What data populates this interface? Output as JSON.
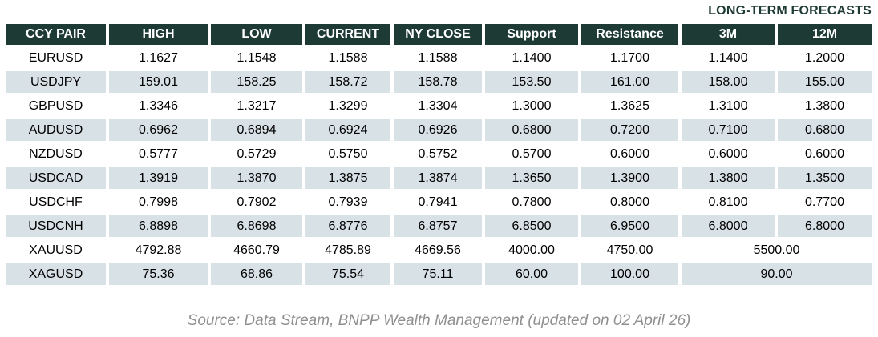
{
  "title": "LONG-TERM FORECASTS",
  "source": "Source: Data Stream, BNPP Wealth Management (updated on 02 April 26)",
  "colors": {
    "header_bg": "#1e3a34",
    "header_text": "#ffffff",
    "row_alt_bg": "#d8e1e6",
    "title_text": "#1e3a34",
    "source_text": "#8f8f8f",
    "cell_text": "#000000"
  },
  "table": {
    "columns": [
      "CCY PAIR",
      "HIGH",
      "LOW",
      "CURRENT",
      "NY CLOSE",
      "Support",
      "Resistance",
      "3M",
      "12M"
    ],
    "rows": [
      {
        "pair": "EURUSD",
        "cells": [
          "1.1627",
          "1.1548",
          "1.1588",
          "1.1588",
          "1.1400",
          "1.1700",
          "1.1400",
          "1.2000"
        ]
      },
      {
        "pair": "USDJPY",
        "cells": [
          "159.01",
          "158.25",
          "158.72",
          "158.78",
          "153.50",
          "161.00",
          "158.00",
          "155.00"
        ]
      },
      {
        "pair": "GBPUSD",
        "cells": [
          "1.3346",
          "1.3217",
          "1.3299",
          "1.3304",
          "1.3000",
          "1.3625",
          "1.3100",
          "1.3800"
        ]
      },
      {
        "pair": "AUDUSD",
        "cells": [
          "0.6962",
          "0.6894",
          "0.6924",
          "0.6926",
          "0.6800",
          "0.7200",
          "0.7100",
          "0.6800"
        ]
      },
      {
        "pair": "NZDUSD",
        "cells": [
          "0.5777",
          "0.5729",
          "0.5750",
          "0.5752",
          "0.5700",
          "0.6000",
          "0.6000",
          "0.6000"
        ]
      },
      {
        "pair": "USDCAD",
        "cells": [
          "1.3919",
          "1.3870",
          "1.3875",
          "1.3874",
          "1.3650",
          "1.3900",
          "1.3800",
          "1.3500"
        ]
      },
      {
        "pair": "USDCHF",
        "cells": [
          "0.7998",
          "0.7902",
          "0.7939",
          "0.7941",
          "0.7800",
          "0.8000",
          "0.8100",
          "0.7700"
        ]
      },
      {
        "pair": "USDCNH",
        "cells": [
          "6.8898",
          "6.8698",
          "6.8776",
          "6.8757",
          "6.8500",
          "6.9500",
          "6.8000",
          "6.8000"
        ]
      },
      {
        "pair": "XAUUSD",
        "cells": [
          "4792.88",
          "4660.79",
          "4785.89",
          "4669.56",
          "4000.00",
          "4750.00"
        ],
        "merged_forecast": "5500.00"
      },
      {
        "pair": "XAGUSD",
        "cells": [
          "75.36",
          "68.86",
          "75.54",
          "75.11",
          "60.00",
          "100.00"
        ],
        "merged_forecast": "90.00"
      }
    ]
  }
}
